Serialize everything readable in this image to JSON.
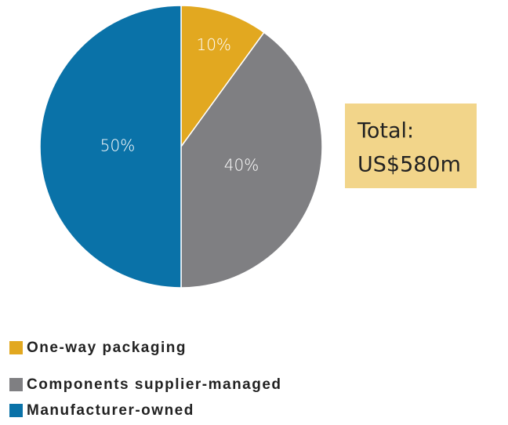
{
  "chart_data": {
    "type": "pie",
    "categories": [
      "One-way packaging",
      "Components supplier-managed",
      "Manufacturer-owned"
    ],
    "values": [
      10,
      40,
      50
    ],
    "value_labels": [
      "10%",
      "40%",
      "50%"
    ],
    "colors": [
      "#e2a820",
      "#7f7f82",
      "#0a72a8"
    ],
    "annotation": [
      "Total:",
      "US$580m"
    ]
  }
}
